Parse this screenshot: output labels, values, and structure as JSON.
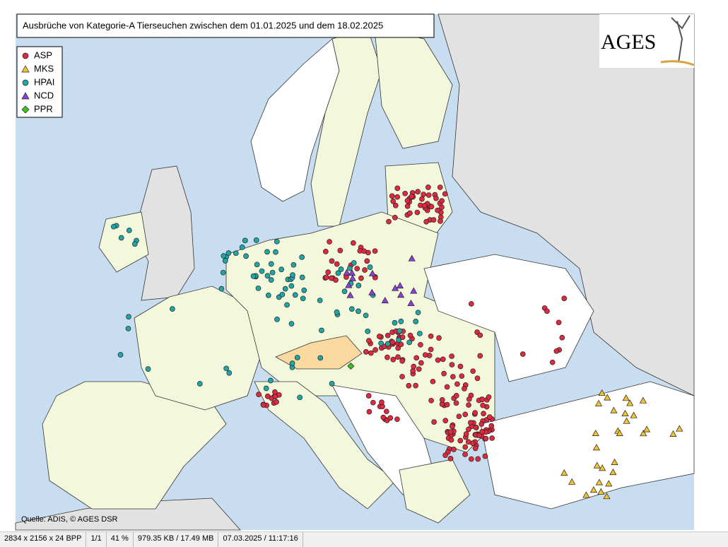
{
  "map": {
    "title": "Ausbrüche von Kategorie-A Tierseuchen zwischen dem 01.01.2025 und dem 18.02.2025",
    "logo": "AGES",
    "source": "Quelle: ADIS, © AGES DSR",
    "legend": {
      "items": [
        {
          "label": "ASP",
          "shape": "circle",
          "color": "#e0293f"
        },
        {
          "label": "MKS",
          "shape": "triangle",
          "color": "#f2c230"
        },
        {
          "label": "HPAI",
          "shape": "circle",
          "color": "#1fa7a8"
        },
        {
          "label": "NCD",
          "shape": "triangle",
          "color": "#8a3fd6"
        },
        {
          "label": "PPR",
          "shape": "diamond",
          "color": "#3fc41f"
        }
      ]
    }
  },
  "status_bar": [
    "2834 x 2156 x 24 BPP",
    "1/1",
    "41 %",
    "979.35 KB / 17.49 MB",
    "07.03.2025 / 11:17:16"
  ]
}
